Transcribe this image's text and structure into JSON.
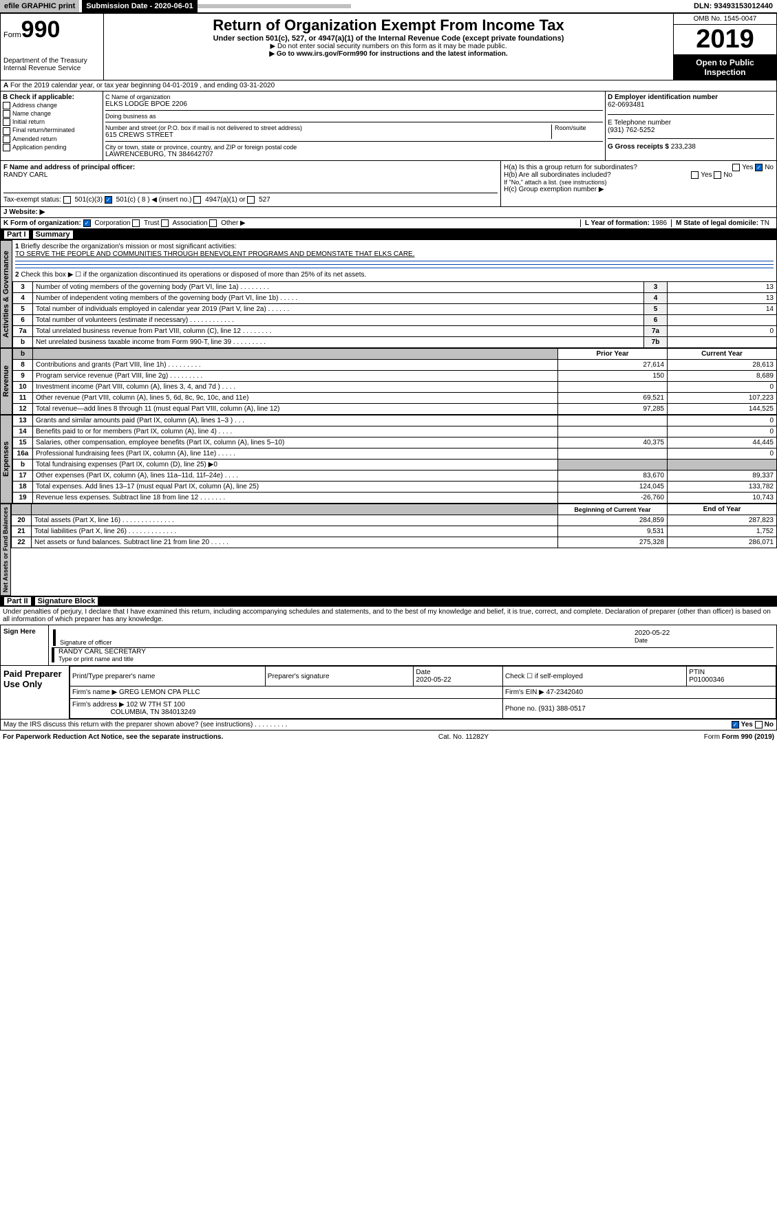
{
  "topbar": {
    "efile": "efile GRAPHIC print",
    "sublabel": "Submission Date - 2020-06-01",
    "dln": "DLN: 93493153012440"
  },
  "header": {
    "form_prefix": "Form",
    "form_no": "990",
    "dept": "Department of the Treasury\nInternal Revenue Service",
    "title": "Return of Organization Exempt From Income Tax",
    "subtitle": "Under section 501(c), 527, or 4947(a)(1) of the Internal Revenue Code (except private foundations)",
    "note1": "▶ Do not enter social security numbers on this form as it may be made public.",
    "note2": "▶ Go to www.irs.gov/Form990 for instructions and the latest information.",
    "omb": "OMB No. 1545-0047",
    "year": "2019",
    "open": "Open to Public Inspection"
  },
  "line_a": "For the 2019 calendar year, or tax year beginning 04-01-2019    , and ending 03-31-2020",
  "box_b": {
    "title": "B Check if applicable:",
    "items": [
      "Address change",
      "Name change",
      "Initial return",
      "Final return/terminated",
      "Amended return",
      "Application pending"
    ]
  },
  "box_c": {
    "label": "C Name of organization",
    "name": "ELKS LODGE BPOE 2206",
    "dba": "Doing business as",
    "addr_label": "Number and street (or P.O. box if mail is not delivered to street address)",
    "room": "Room/suite",
    "addr": "615 CREWS STREET",
    "city_label": "City or town, state or province, country, and ZIP or foreign postal code",
    "city": "LAWRENCEBURG, TN  384642707"
  },
  "box_d": {
    "label": "D Employer identification number",
    "val": "62-0693481"
  },
  "box_e": {
    "label": "E Telephone number",
    "val": "(931) 762-5252"
  },
  "box_g": {
    "label": "G Gross receipts $",
    "val": "233,238"
  },
  "box_f": {
    "label": "F Name and address of principal officer:",
    "val": "RANDY CARL"
  },
  "box_h": {
    "a": "H(a)  Is this a group return for subordinates?",
    "b": "H(b)  Are all subordinates included?",
    "b_note": "If \"No,\" attach a list. (see instructions)",
    "c": "H(c)  Group exemption number ▶"
  },
  "tax_status": {
    "label": "Tax-exempt status:",
    "opts": [
      "501(c)(3)",
      "501(c) ( 8 ) ◀ (insert no.)",
      "4947(a)(1) or",
      "527"
    ]
  },
  "website": {
    "label": "J   Website: ▶"
  },
  "line_k": {
    "label": "K Form of organization:",
    "opts": [
      "Corporation",
      "Trust",
      "Association",
      "Other ▶"
    ]
  },
  "line_l": {
    "label": "L Year of formation:",
    "val": "1986"
  },
  "line_m": {
    "label": "M State of legal domicile:",
    "val": "TN"
  },
  "part1": {
    "title": "Part I",
    "name": "Summary"
  },
  "governance": {
    "label": "Activities & Governance",
    "l1": "Briefly describe the organization's mission or most significant activities:",
    "l1v": "TO SERVE THE PEOPLE AND COMMUNITIES THROUGH BENEVOLENT PROGRAMS AND DEMONSTATE THAT ELKS CARE.",
    "l2": "Check this box ▶ ☐  if the organization discontinued its operations or disposed of more than 25% of its net assets.",
    "rows": [
      {
        "n": "3",
        "t": "Number of voting members of the governing body (Part VI, line 1a)  .    .    .    .    .    .    .    .",
        "b": "3",
        "v": "13"
      },
      {
        "n": "4",
        "t": "Number of independent voting members of the governing body (Part VI, line 1b)  .    .    .    .    .",
        "b": "4",
        "v": "13"
      },
      {
        "n": "5",
        "t": "Total number of individuals employed in calendar year 2019 (Part V, line 2a)  .    .    .    .    .    .",
        "b": "5",
        "v": "14"
      },
      {
        "n": "6",
        "t": "Total number of volunteers (estimate if necessary)  .    .    .    .    .    .    .    .    .    .    .    .",
        "b": "6",
        "v": ""
      },
      {
        "n": "7a",
        "t": "Total unrelated business revenue from Part VIII, column (C), line 12  .    .    .    .    .    .    .    .",
        "b": "7a",
        "v": "0"
      },
      {
        "n": "b",
        "t": "Net unrelated business taxable income from Form 990-T, line 39  .    .    .    .    .    .    .    .    .",
        "b": "7b",
        "v": ""
      }
    ]
  },
  "revenue": {
    "label": "Revenue",
    "header": {
      "py": "Prior Year",
      "cy": "Current Year"
    },
    "rows": [
      {
        "n": "8",
        "t": "Contributions and grants (Part VIII, line 1h)  .    .    .    .    .    .    .    .    .",
        "py": "27,614",
        "cy": "28,613"
      },
      {
        "n": "9",
        "t": "Program service revenue (Part VIII, line 2g)  .    .    .    .    .    .    .    .    .",
        "py": "150",
        "cy": "8,689"
      },
      {
        "n": "10",
        "t": "Investment income (Part VIII, column (A), lines 3, 4, and 7d )  .    .    .    .",
        "py": "",
        "cy": "0"
      },
      {
        "n": "11",
        "t": "Other revenue (Part VIII, column (A), lines 5, 6d, 8c, 9c, 10c, and 11e)",
        "py": "69,521",
        "cy": "107,223"
      },
      {
        "n": "12",
        "t": "Total revenue—add lines 8 through 11 (must equal Part VIII, column (A), line 12)",
        "py": "97,285",
        "cy": "144,525"
      }
    ]
  },
  "expenses": {
    "label": "Expenses",
    "rows": [
      {
        "n": "13",
        "t": "Grants and similar amounts paid (Part IX, column (A), lines 1–3 )  .    .    .",
        "py": "",
        "cy": "0"
      },
      {
        "n": "14",
        "t": "Benefits paid to or for members (Part IX, column (A), line 4)  .    .    .    .",
        "py": "",
        "cy": "0"
      },
      {
        "n": "15",
        "t": "Salaries, other compensation, employee benefits (Part IX, column (A), lines 5–10)",
        "py": "40,375",
        "cy": "44,445"
      },
      {
        "n": "16a",
        "t": "Professional fundraising fees (Part IX, column (A), line 11e)  .    .    .    .    .",
        "py": "",
        "cy": "0"
      },
      {
        "n": "b",
        "t": "Total fundraising expenses (Part IX, column (D), line 25) ▶0",
        "py": "shade",
        "cy": "shade"
      },
      {
        "n": "17",
        "t": "Other expenses (Part IX, column (A), lines 11a–11d, 11f–24e)  .    .    .    .",
        "py": "83,670",
        "cy": "89,337"
      },
      {
        "n": "18",
        "t": "Total expenses. Add lines 13–17 (must equal Part IX, column (A), line 25)",
        "py": "124,045",
        "cy": "133,782"
      },
      {
        "n": "19",
        "t": "Revenue less expenses. Subtract line 18 from line 12  .    .    .    .    .    .    .",
        "py": "-26,760",
        "cy": "10,743"
      }
    ]
  },
  "netassets": {
    "label": "Net Assets or Fund Balances",
    "header": {
      "py": "Beginning of Current Year",
      "cy": "End of Year"
    },
    "rows": [
      {
        "n": "20",
        "t": "Total assets (Part X, line 16)  .    .    .    .    .    .    .    .    .    .    .    .    .    .",
        "py": "284,859",
        "cy": "287,823"
      },
      {
        "n": "21",
        "t": "Total liabilities (Part X, line 26)  .    .    .    .    .    .    .    .    .    .    .    .    .",
        "py": "9,531",
        "cy": "1,752"
      },
      {
        "n": "22",
        "t": "Net assets or fund balances. Subtract line 21 from line 20  .    .    .    .    .",
        "py": "275,328",
        "cy": "286,071"
      }
    ]
  },
  "part2": {
    "title": "Part II",
    "name": "Signature Block"
  },
  "perjury": "Under penalties of perjury, I declare that I have examined this return, including accompanying schedules and statements, and to the best of my knowledge and belief, it is true, correct, and complete. Declaration of preparer (other than officer) is based on all information of which preparer has any knowledge.",
  "sign": {
    "here": "Sign Here",
    "date": "2020-05-22",
    "sig_label": "Signature of officer",
    "date_label": "Date",
    "name": "RANDY CARL  SECRETARY",
    "name_label": "Type or print name and title"
  },
  "prep": {
    "title": "Paid Preparer Use Only",
    "h1": "Print/Type preparer's name",
    "h2": "Preparer's signature",
    "h3": "Date",
    "h4": "Check ☐ if self-employed",
    "h5": "PTIN",
    "date": "2020-05-22",
    "ptin": "P01000346",
    "firm_label": "Firm's name    ▶",
    "firm": "GREG LEMON CPA PLLC",
    "ein_label": "Firm's EIN ▶",
    "ein": "47-2342040",
    "addr_label": "Firm's address ▶",
    "addr": "102 W 7TH ST 100",
    "city": "COLUMBIA, TN  384013249",
    "phone_label": "Phone no.",
    "phone": "(931) 388-0517"
  },
  "discuss": "May the IRS discuss this return with the preparer shown above? (see instructions)    .    .    .    .    .    .    .    .    .",
  "footer": {
    "pra": "For Paperwork Reduction Act Notice, see the separate instructions.",
    "cat": "Cat. No. 11282Y",
    "form": "Form 990 (2019)"
  }
}
